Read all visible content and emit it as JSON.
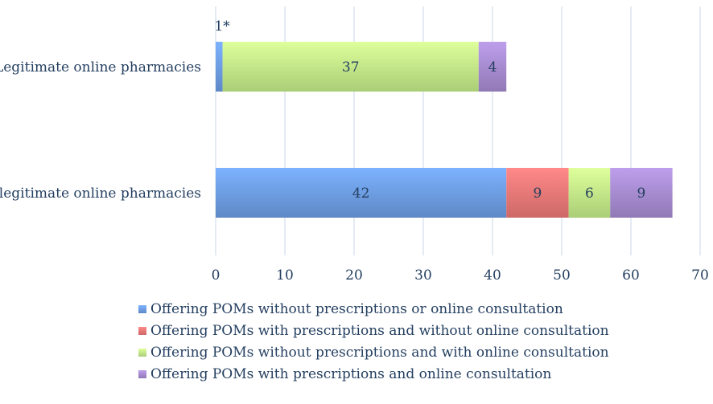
{
  "chart_data": {
    "type": "bar",
    "orientation": "horizontal",
    "stacked": true,
    "categories": [
      "Legitimate online pharmacies",
      "Illegitimate online pharmacies"
    ],
    "series": [
      {
        "name": "Offering POMs without prescriptions or online consultation",
        "values": [
          1,
          42
        ],
        "labels": [
          "1*",
          "42"
        ],
        "color": "#6f9fe6"
      },
      {
        "name": "Offering POMs with prescriptions and without online consultation",
        "values": [
          0,
          9
        ],
        "labels": [
          "",
          "9"
        ],
        "color": "#ee7a79"
      },
      {
        "name": "Offering POMs without prescriptions and with online consultation",
        "values": [
          37,
          6
        ],
        "labels": [
          "37",
          "6"
        ],
        "color": "#c6ef8a"
      },
      {
        "name": "Offering POMs with prescriptions and online consultation",
        "values": [
          4,
          9
        ],
        "labels": [
          "4",
          "9"
        ],
        "color": "#a98dd3"
      }
    ],
    "xlim": [
      0,
      70
    ],
    "ticks": [
      0,
      10,
      20,
      30,
      40,
      50,
      60,
      70
    ],
    "grid": true,
    "legend_position": "bottom"
  }
}
